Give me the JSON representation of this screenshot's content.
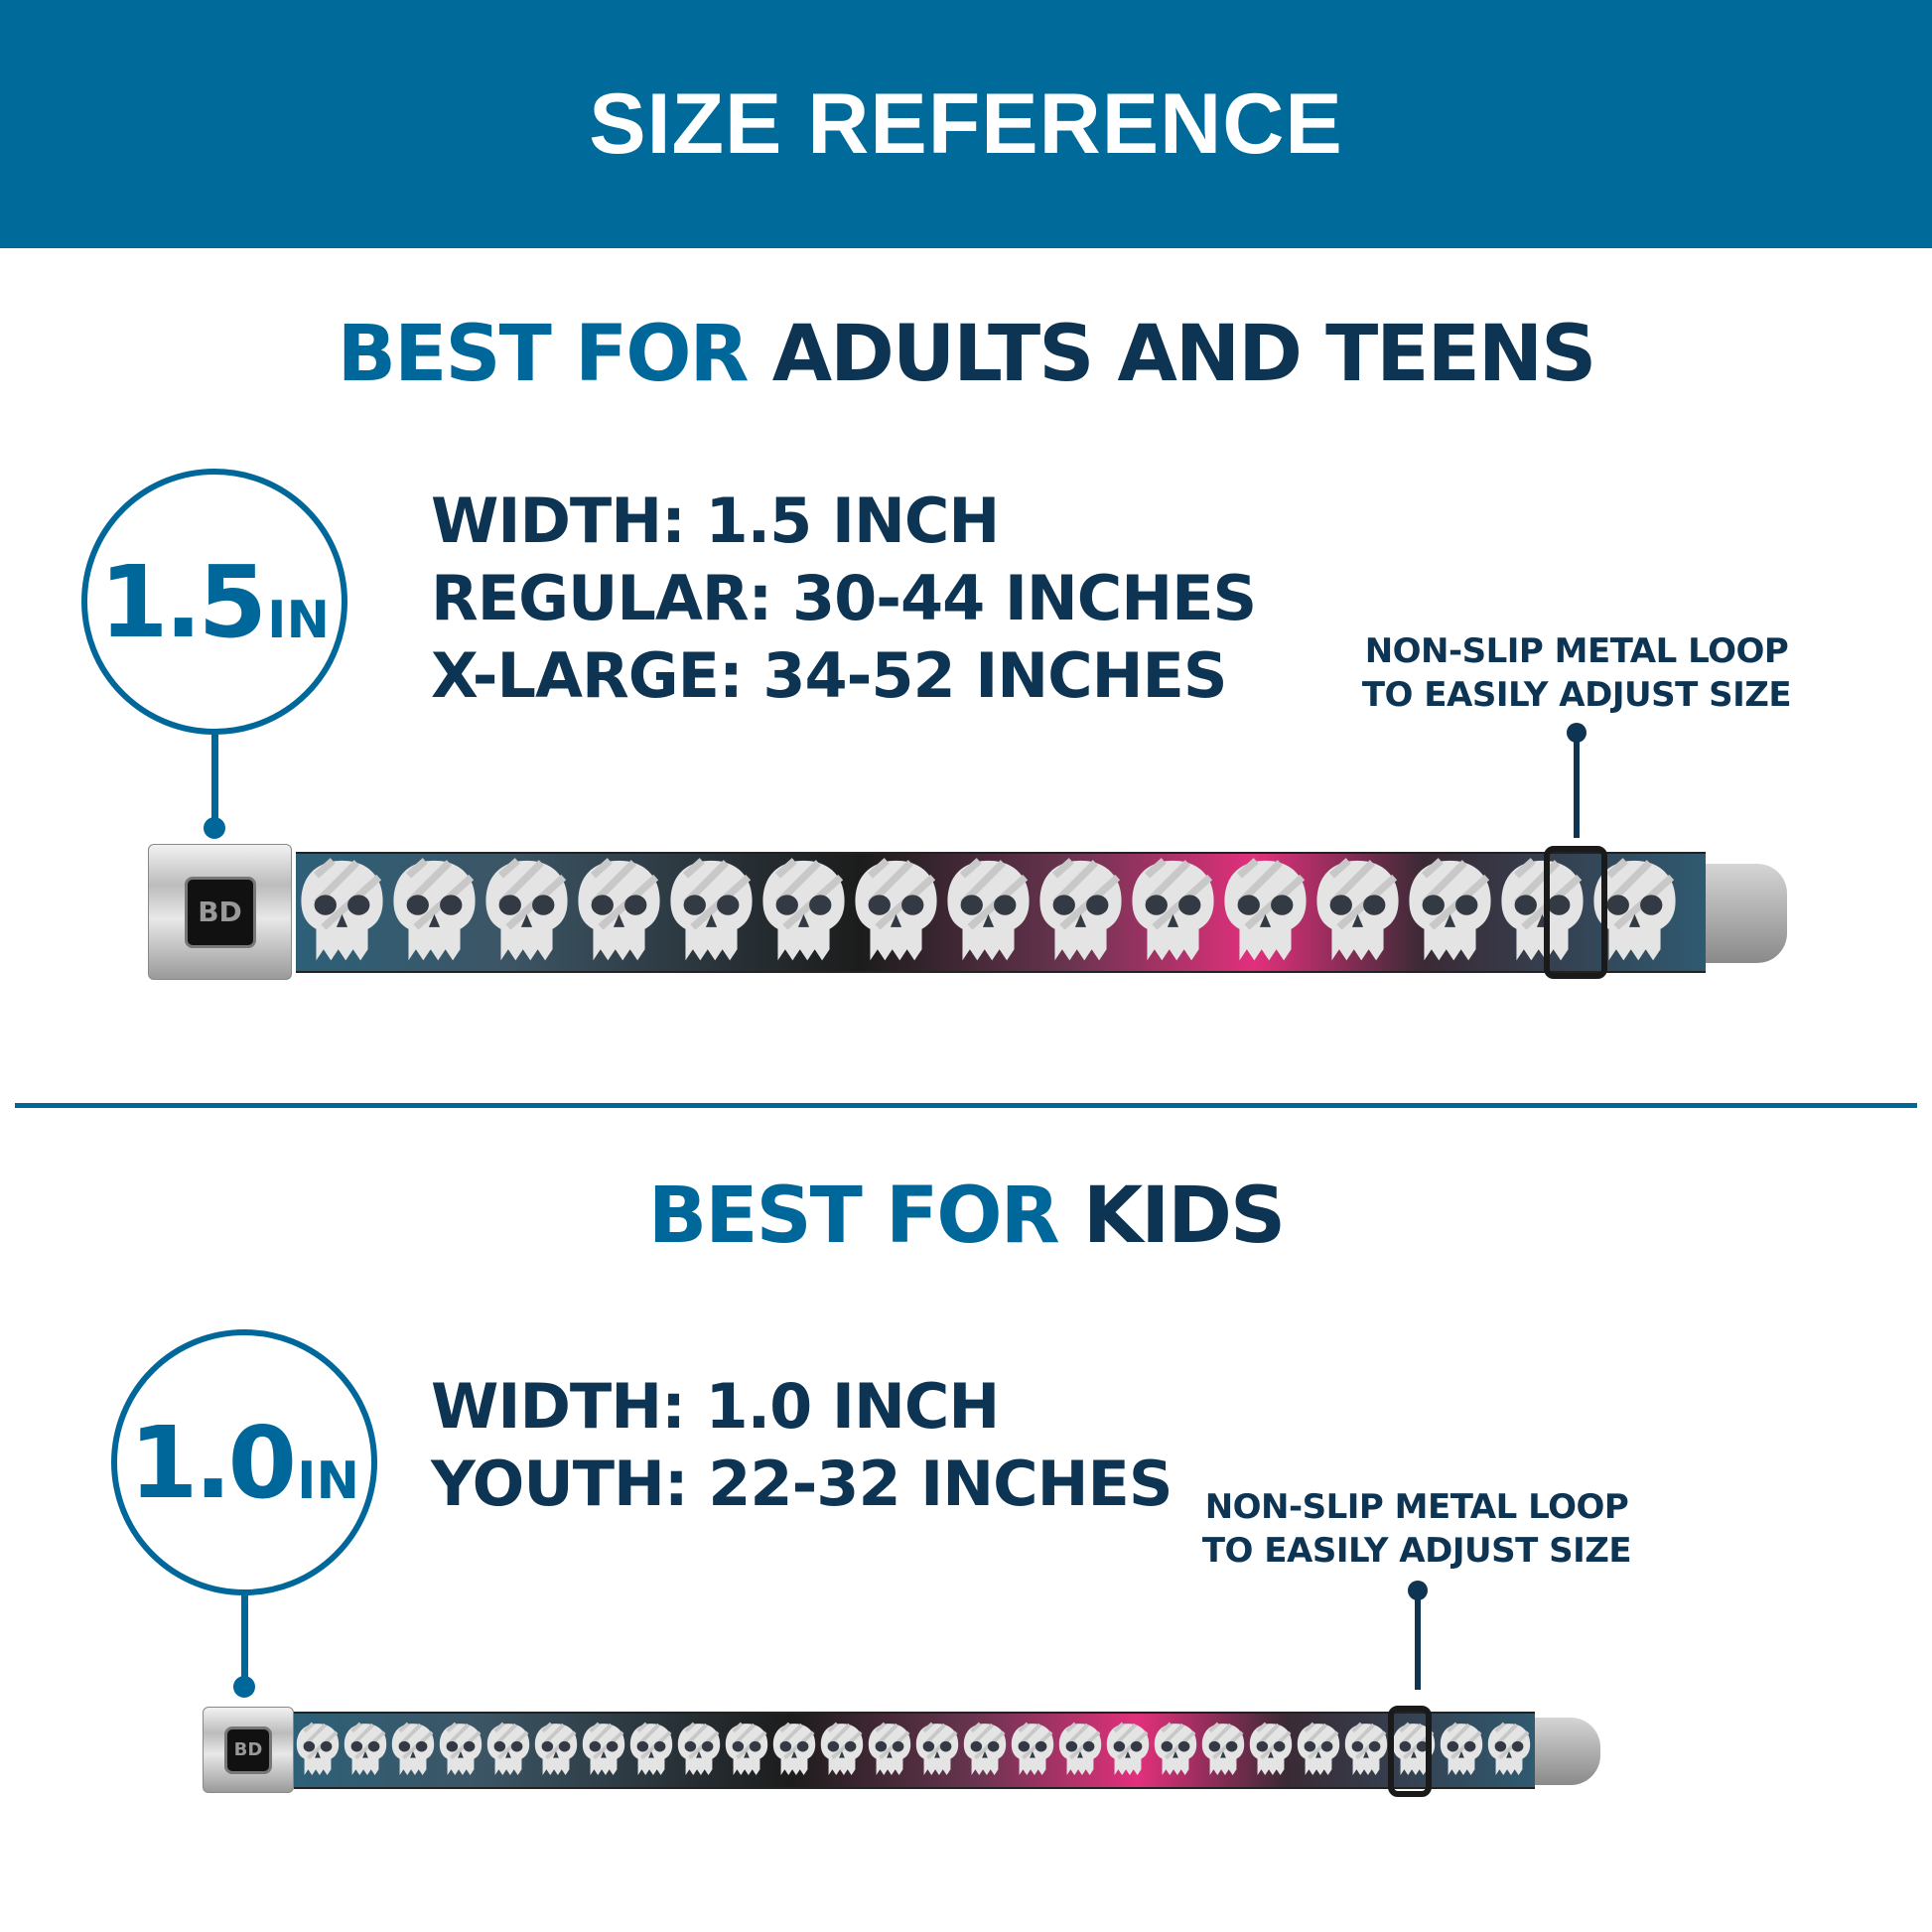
{
  "header": {
    "title": "SIZE REFERENCE"
  },
  "colors": {
    "header_bg": "#006a9a",
    "accent_blue": "#00679a",
    "navy": "#0d3452",
    "pink": "#e2307c"
  },
  "adults": {
    "title_prefix": "BEST FOR",
    "title_main": "ADULTS AND TEENS",
    "badge": {
      "number": "1.5",
      "unit": "IN"
    },
    "specs": [
      "WIDTH: 1.5 INCH",
      "REGULAR: 30-44 INCHES",
      "X-LARGE: 34-52 INCHES"
    ],
    "note": [
      "NON-SLIP METAL LOOP",
      "TO EASILY ADJUST SIZE"
    ],
    "logo": "BD"
  },
  "kids": {
    "title_prefix": "BEST FOR",
    "title_main": "KIDS",
    "badge": {
      "number": "1.0",
      "unit": "IN"
    },
    "specs": [
      "WIDTH: 1.0 INCH",
      "YOUTH: 22-32 INCHES"
    ],
    "note": [
      "NON-SLIP METAL LOOP",
      "TO EASILY ADJUST SIZE"
    ],
    "logo": "BD"
  },
  "belt_pattern": "skull-icon"
}
